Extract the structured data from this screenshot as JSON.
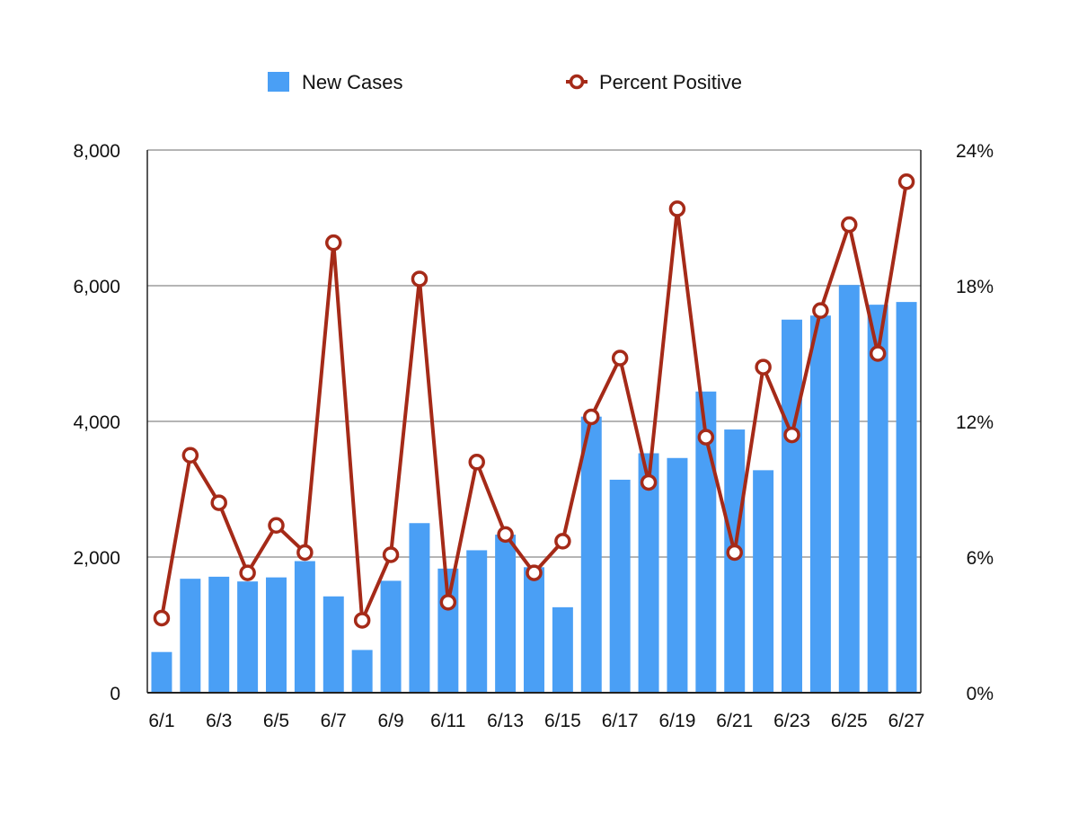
{
  "chart_data": {
    "type": "bar",
    "title": "",
    "xlabel": "",
    "ylabel": "",
    "categories": [
      "6/1",
      "6/2",
      "6/3",
      "6/4",
      "6/5",
      "6/6",
      "6/7",
      "6/8",
      "6/9",
      "6/10",
      "6/11",
      "6/12",
      "6/13",
      "6/14",
      "6/15",
      "6/16",
      "6/17",
      "6/18",
      "6/19",
      "6/20",
      "6/21",
      "6/22",
      "6/23",
      "6/24",
      "6/25",
      "6/26",
      "6/27"
    ],
    "x_tick_labels": [
      "6/1",
      "6/3",
      "6/5",
      "6/7",
      "6/9",
      "6/11",
      "6/13",
      "6/15",
      "6/17",
      "6/19",
      "6/21",
      "6/23",
      "6/25",
      "6/27"
    ],
    "series": [
      {
        "name": "New Cases",
        "type": "bar",
        "axis": "left",
        "color": "#4a9ff5",
        "values": [
          600,
          1680,
          1710,
          1640,
          1700,
          1940,
          1420,
          630,
          1650,
          2500,
          1830,
          2100,
          2330,
          1850,
          1260,
          4070,
          3140,
          3530,
          3460,
          4440,
          3880,
          3280,
          5500,
          5560,
          6010,
          5720,
          5760
        ]
      },
      {
        "name": "Percent Positive",
        "type": "line",
        "axis": "right",
        "color": "#a52a18",
        "marker": "open-circle",
        "values": [
          3.3,
          10.5,
          8.4,
          5.3,
          7.4,
          6.2,
          19.9,
          3.2,
          6.1,
          18.3,
          4.0,
          10.2,
          7.0,
          5.3,
          6.7,
          12.2,
          14.8,
          9.3,
          21.4,
          11.3,
          6.2,
          14.4,
          11.4,
          16.9,
          20.7,
          15.0,
          22.6
        ]
      }
    ],
    "left_axis": {
      "ylim": [
        0,
        8000
      ],
      "ticks": [
        0,
        2000,
        4000,
        6000,
        8000
      ],
      "tick_labels": [
        "0",
        "2,000",
        "4,000",
        "6,000",
        "8,000"
      ]
    },
    "right_axis": {
      "ylim": [
        0,
        24
      ],
      "ticks": [
        0,
        6,
        12,
        18,
        24
      ],
      "tick_labels": [
        "0%",
        "6%",
        "12%",
        "18%",
        "24%"
      ]
    },
    "grid": true,
    "legend": {
      "placement": "top-center",
      "entries": [
        "New Cases",
        "Percent Positive"
      ]
    }
  }
}
